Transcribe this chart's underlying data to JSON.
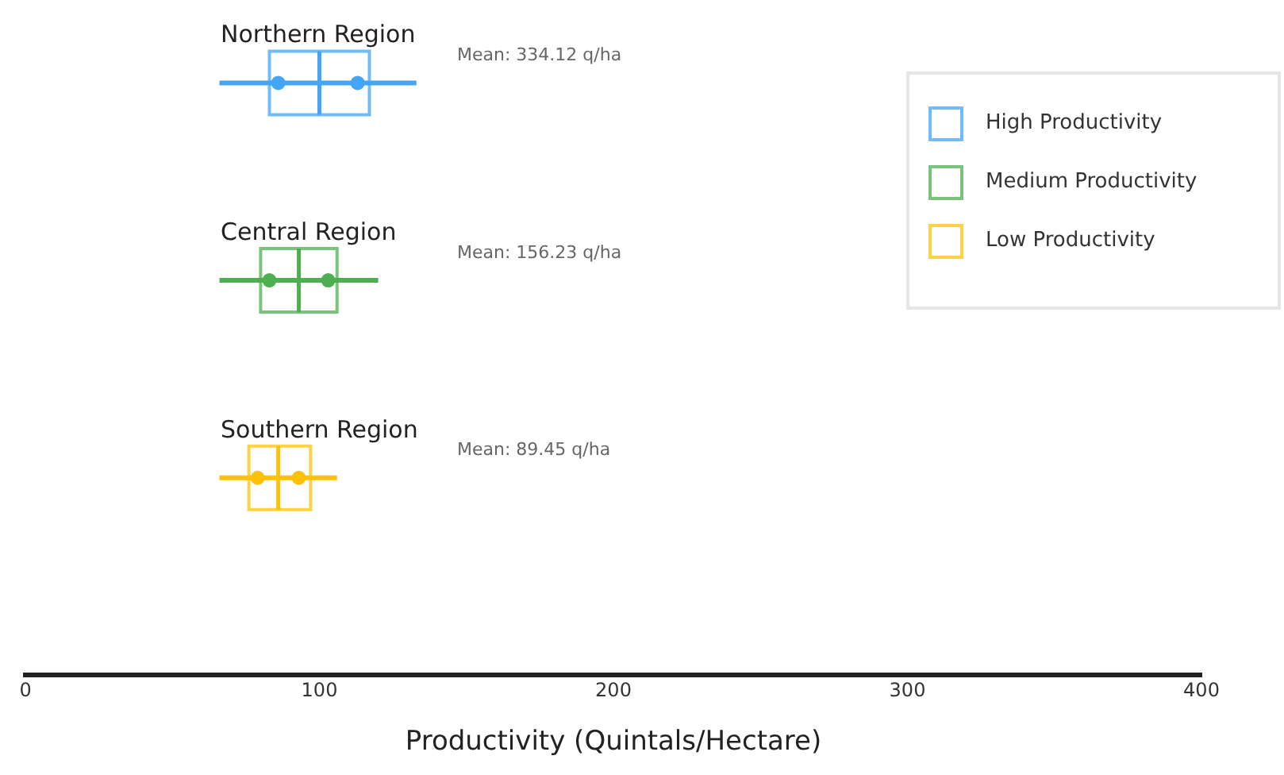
{
  "chart_data": {
    "type": "box",
    "orientation": "horizontal",
    "xlabel": "Productivity (Quintals/Hectare)",
    "categories": [
      "Northern Region",
      "Central Region",
      "Southern Region"
    ],
    "xlim": [
      0,
      400
    ],
    "xticks": [
      0,
      100,
      200,
      300,
      400
    ],
    "grid": false,
    "legend": "top right",
    "series": [
      {
        "name": "High Productivity",
        "color": "#42a5f5",
        "boxes": [
          {
            "low": 66,
            "q1": 83,
            "median": 100,
            "q3": 117,
            "high": 133,
            "outliers": [
              86,
              113
            ]
          },
          null,
          null
        ]
      },
      {
        "name": "Medium Productivity",
        "color": "#4caf50",
        "boxes": [
          null,
          {
            "low": 66,
            "q1": 80,
            "median": 93,
            "q3": 106,
            "high": 120,
            "outliers": [
              83,
              103
            ]
          },
          null
        ]
      },
      {
        "name": "Low Productivity",
        "color": "#ffc107",
        "boxes": [
          null,
          null,
          {
            "low": 66,
            "q1": 76,
            "median": 86,
            "q3": 97,
            "high": 106,
            "outliers": [
              79,
              93
            ]
          }
        ]
      }
    ],
    "annotations": [
      "Mean: 334.12 q/ha",
      "Mean: 156.23 q/ha",
      "Mean: 89.45 q/ha"
    ]
  }
}
